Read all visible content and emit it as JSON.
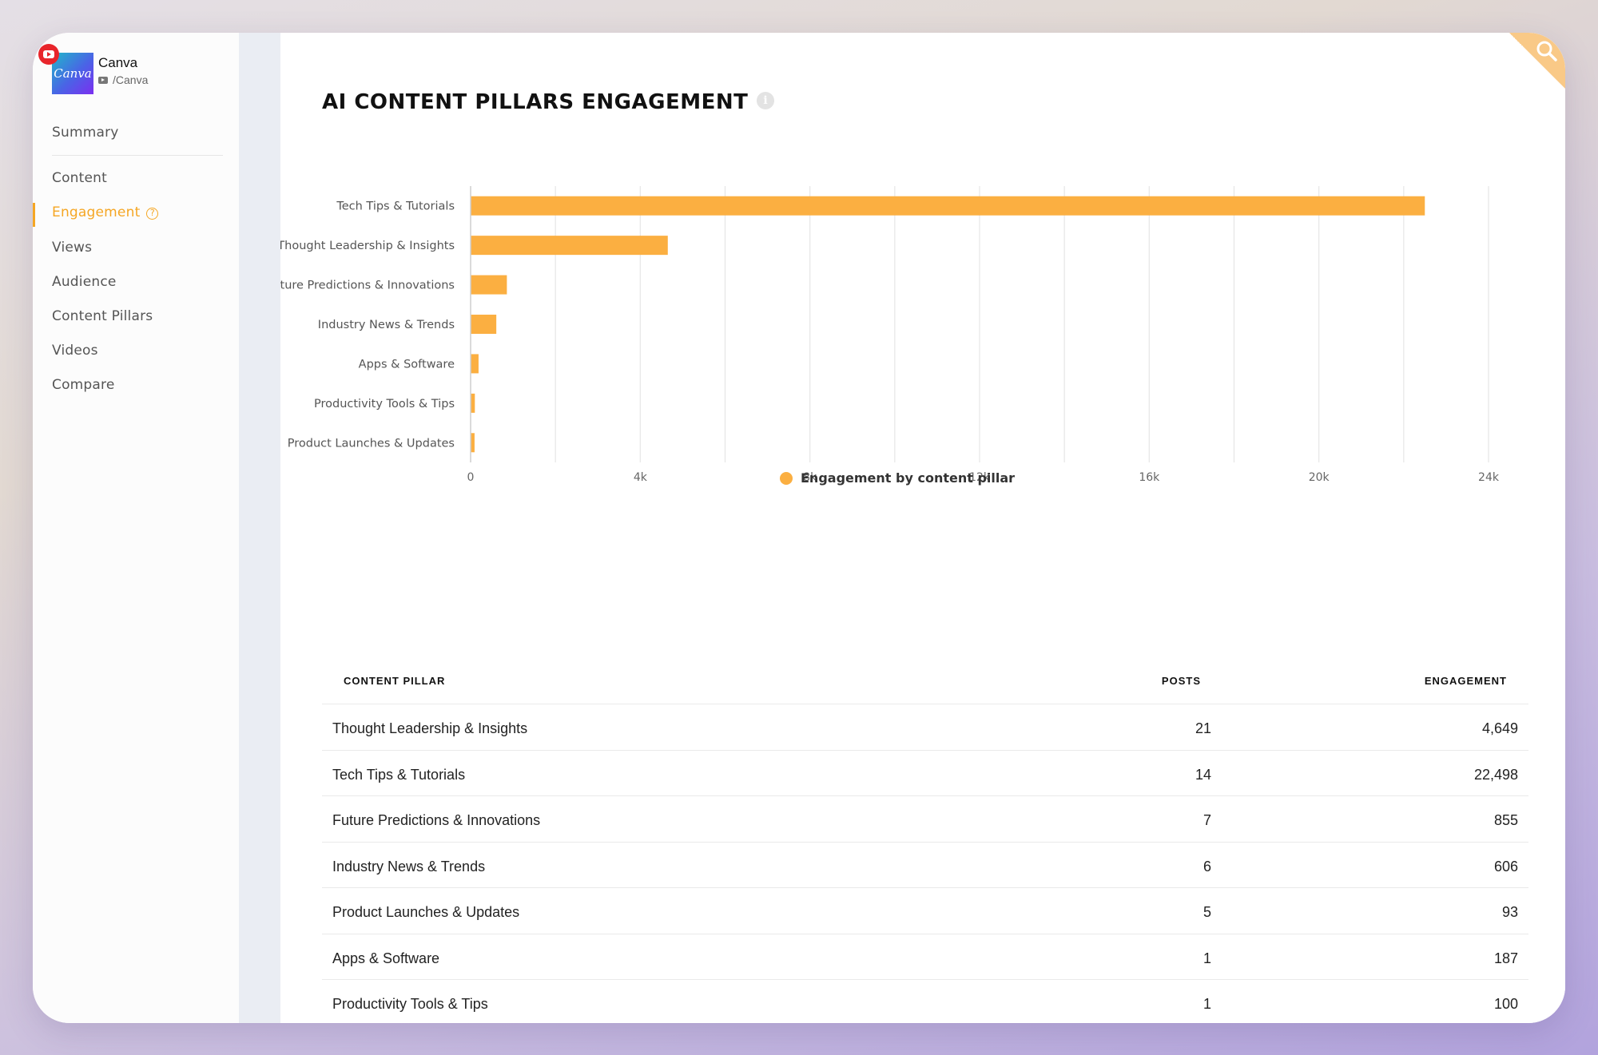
{
  "brand": {
    "logo_text": "Canva",
    "name": "Canva",
    "handle": "/Canva"
  },
  "nav": {
    "items": [
      {
        "label": "Summary"
      },
      {
        "label": "Content"
      },
      {
        "label": "Engagement",
        "active": true
      },
      {
        "label": "Views"
      },
      {
        "label": "Audience"
      },
      {
        "label": "Content Pillars"
      },
      {
        "label": "Videos"
      },
      {
        "label": "Compare"
      }
    ],
    "help_glyph": "?"
  },
  "header": {
    "title": "AI CONTENT PILLARS ENGAGEMENT",
    "info_glyph": "i"
  },
  "colors": {
    "accent": "#f5a623",
    "bar": "#fbaf41"
  },
  "chart_data": {
    "type": "bar",
    "orientation": "horizontal",
    "categories": [
      "Tech Tips & Tutorials",
      "Thought Leadership & Insights",
      "Future Predictions & Innovations",
      "Industry News & Trends",
      "Apps & Software",
      "Productivity Tools & Tips",
      "Product Launches & Updates"
    ],
    "series": [
      {
        "name": "Engagement by content pillar",
        "values": [
          22498,
          4649,
          855,
          606,
          187,
          100,
          93
        ]
      }
    ],
    "x_ticks": [
      "0",
      "4k",
      "8k",
      "12k",
      "16k",
      "20k",
      "24k"
    ],
    "xlim": [
      0,
      24000
    ],
    "grid": true,
    "legend": "bottom-center"
  },
  "table": {
    "headers": {
      "pillar": "CONTENT PILLAR",
      "posts": "POSTS",
      "engagement": "ENGAGEMENT"
    },
    "rows": [
      {
        "pillar": "Thought Leadership & Insights",
        "posts": "21",
        "engagement": "4,649"
      },
      {
        "pillar": "Tech Tips & Tutorials",
        "posts": "14",
        "engagement": "22,498"
      },
      {
        "pillar": "Future Predictions & Innovations",
        "posts": "7",
        "engagement": "855"
      },
      {
        "pillar": "Industry News & Trends",
        "posts": "6",
        "engagement": "606"
      },
      {
        "pillar": "Product Launches & Updates",
        "posts": "5",
        "engagement": "93"
      },
      {
        "pillar": "Apps & Software",
        "posts": "1",
        "engagement": "187"
      },
      {
        "pillar": "Productivity Tools & Tips",
        "posts": "1",
        "engagement": "100"
      }
    ]
  }
}
